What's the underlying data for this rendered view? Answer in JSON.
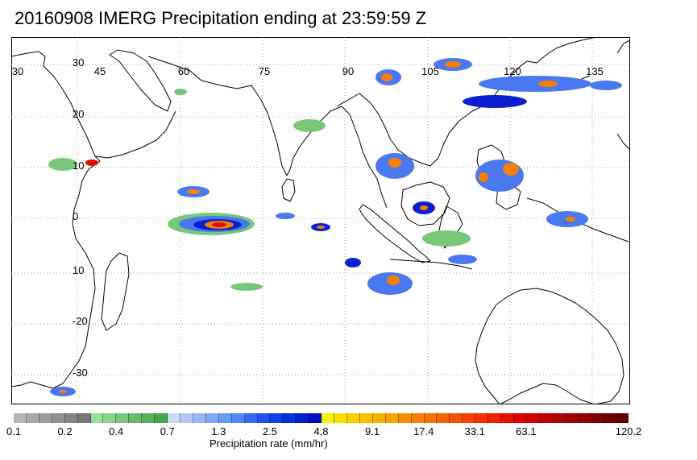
{
  "title": "20160908 IMERG Precipitation ending at 23:59:59 Z",
  "map": {
    "lon_labels": [
      "30",
      "45",
      "60",
      "75",
      "90",
      "105",
      "120",
      "135"
    ],
    "lat_labels": [
      "30",
      "20",
      "10",
      "0",
      "10",
      "-20",
      "-30"
    ]
  },
  "colorbar": {
    "title": "Precipitation rate (mm/hr)",
    "tick_labels": [
      "0.1",
      "0.2",
      "0.4",
      "0.7",
      "1.3",
      "2.5",
      "4.8",
      "9.1",
      "17.4",
      "33.1",
      "63.1",
      "120.2"
    ],
    "colors": [
      "#b4b4b4",
      "#a8a8a8",
      "#9c9c9c",
      "#909090",
      "#848484",
      "#787878",
      "#98e098",
      "#88d488",
      "#78c878",
      "#68bc68",
      "#58b058",
      "#48a448",
      "#c8d8f8",
      "#b0c8f8",
      "#98b8f8",
      "#80a8f8",
      "#6898f8",
      "#5088f8",
      "#3868f8",
      "#2050f0",
      "#1040e8",
      "#0030e0",
      "#0020d0",
      "#0010c0",
      "#f8f000",
      "#f8e000",
      "#f8d000",
      "#f8c000",
      "#f8b000",
      "#f8a000",
      "#f89000",
      "#f88000",
      "#f87000",
      "#f86000",
      "#f85000",
      "#f84000",
      "#f83000",
      "#f02000",
      "#e81000",
      "#e00000",
      "#d00000",
      "#c00000",
      "#b00000",
      "#a00000",
      "#900000",
      "#800000",
      "#700000",
      "#600000"
    ]
  },
  "palette": {
    "land_outline": "#000000",
    "grid": "#9a9a9a",
    "rain_light": "#78c878",
    "rain_moderate": "#4a78f0",
    "rain_heavy": "#0a20d0",
    "rain_intense": "#f88000",
    "rain_extreme": "#e01000"
  }
}
